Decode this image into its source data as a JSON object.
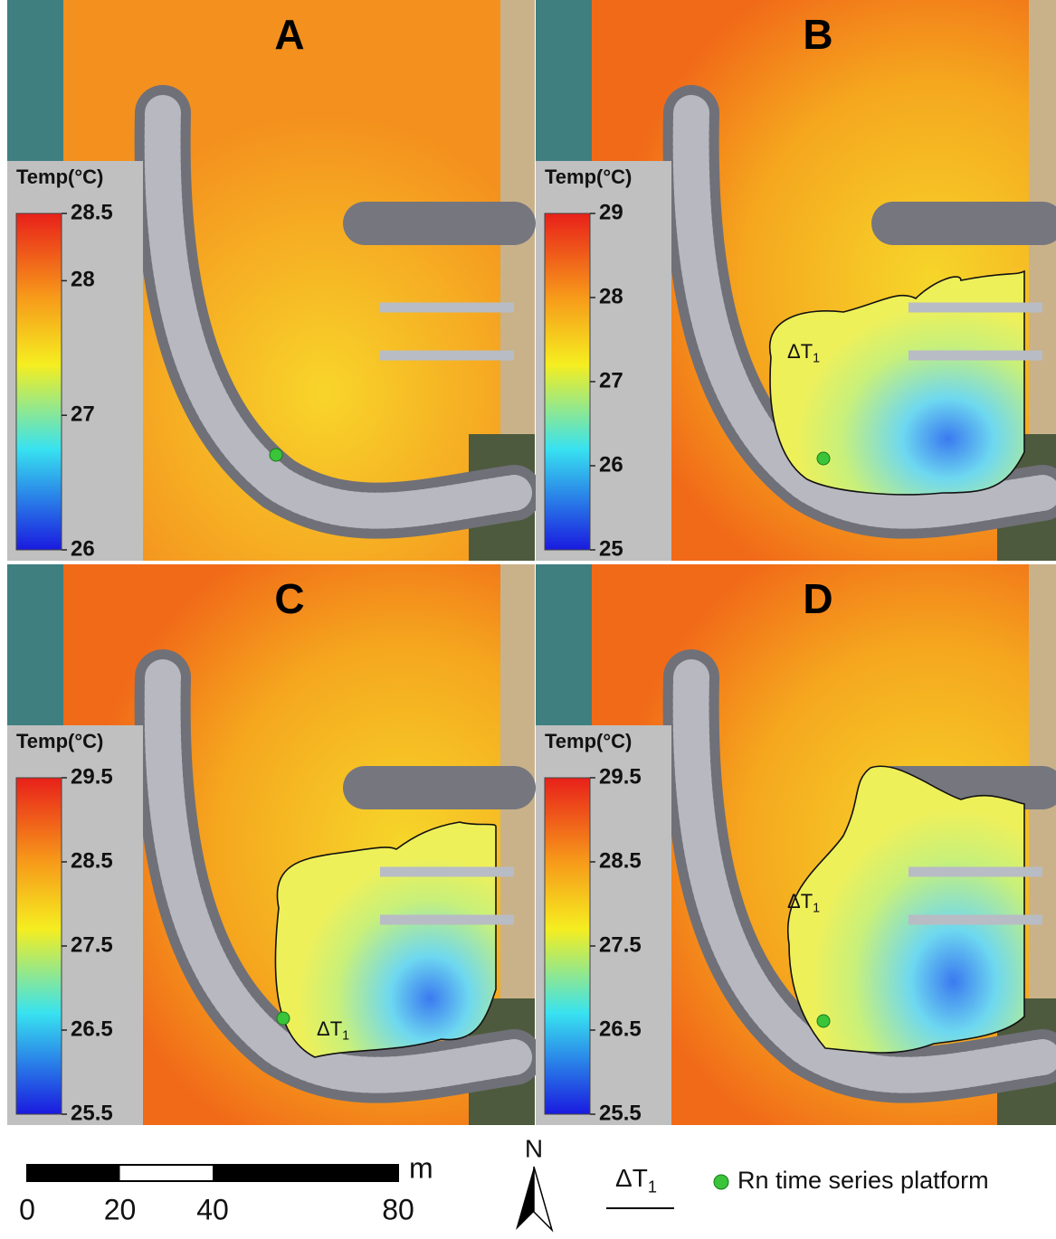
{
  "panels": [
    {
      "label": "A",
      "colorbar": {
        "title": "Temp(°C)",
        "ticks": [
          28.5,
          28,
          27,
          26
        ]
      }
    },
    {
      "label": "B",
      "colorbar": {
        "title": "Temp(°C)",
        "ticks": [
          29,
          28,
          27,
          26,
          25
        ]
      },
      "annotation": {
        "main": "ΔT",
        "sub": "1"
      }
    },
    {
      "label": "C",
      "colorbar": {
        "title": "Temp(°C)",
        "ticks": [
          29.5,
          28.5,
          27.5,
          26.5,
          25.5
        ]
      },
      "annotation": {
        "main": "ΔT",
        "sub": "1"
      }
    },
    {
      "label": "D",
      "colorbar": {
        "title": "Temp(°C)",
        "ticks": [
          29.5,
          28.5,
          27.5,
          26.5,
          25.5
        ]
      },
      "annotation": {
        "main": "ΔT",
        "sub": "1"
      }
    }
  ],
  "scale_bar": {
    "ticks": [
      0,
      20,
      40,
      80
    ],
    "unit": "m"
  },
  "north": "N",
  "legend": {
    "contour": {
      "main": "ΔT",
      "sub": "1"
    },
    "platform": "Rn time series platform"
  }
}
